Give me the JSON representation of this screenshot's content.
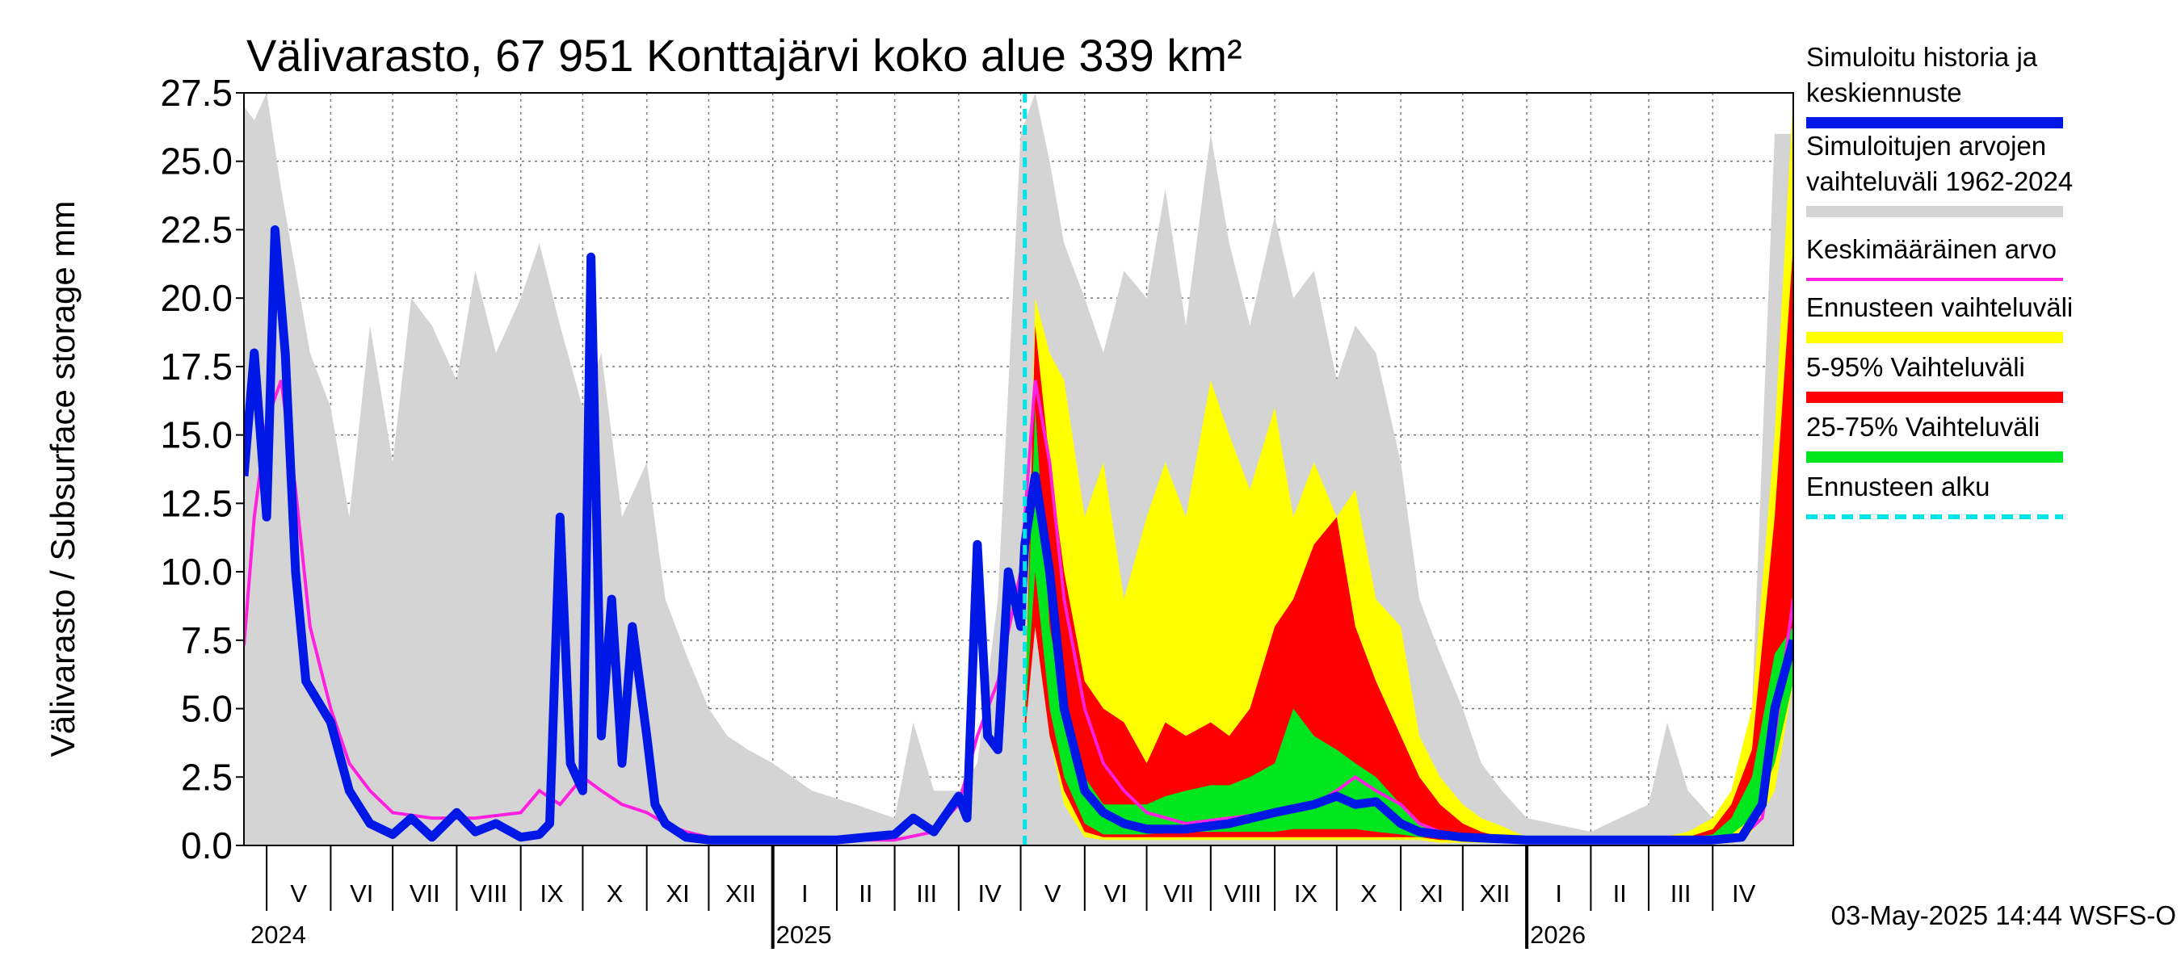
{
  "chart_data": {
    "type": "area",
    "title": "Välivarasto, 67 951 Konttajärvi koko alue 339 km²",
    "ylabel": "Välivarasto / Subsurface storage  mm",
    "ylim": [
      0,
      27.5
    ],
    "yticks": [
      "0.0",
      "2.5",
      "5.0",
      "7.5",
      "10.0",
      "12.5",
      "15.0",
      "17.5",
      "20.0",
      "22.5",
      "25.0",
      "27.5"
    ],
    "x_start": "2024-04-20",
    "x_end": "2026-05-10",
    "forecast_start": "2025-05-03",
    "grid": true,
    "legend_position": "right",
    "months": [
      {
        "label": "V",
        "start": "2024-05-01",
        "end": "2024-06-01"
      },
      {
        "label": "VI",
        "start": "2024-06-01",
        "end": "2024-07-01"
      },
      {
        "label": "VII",
        "start": "2024-07-01",
        "end": "2024-08-01"
      },
      {
        "label": "VIII",
        "start": "2024-08-01",
        "end": "2024-09-01"
      },
      {
        "label": "IX",
        "start": "2024-09-01",
        "end": "2024-10-01"
      },
      {
        "label": "X",
        "start": "2024-10-01",
        "end": "2024-11-01"
      },
      {
        "label": "XI",
        "start": "2024-11-01",
        "end": "2024-12-01"
      },
      {
        "label": "XII",
        "start": "2024-12-01",
        "end": "2025-01-01"
      },
      {
        "label": "I",
        "start": "2025-01-01",
        "end": "2025-02-01"
      },
      {
        "label": "II",
        "start": "2025-02-01",
        "end": "2025-03-01"
      },
      {
        "label": "III",
        "start": "2025-03-01",
        "end": "2025-04-01"
      },
      {
        "label": "IV",
        "start": "2025-04-01",
        "end": "2025-05-01"
      },
      {
        "label": "V",
        "start": "2025-05-01",
        "end": "2025-06-01"
      },
      {
        "label": "VI",
        "start": "2025-06-01",
        "end": "2025-07-01"
      },
      {
        "label": "VII",
        "start": "2025-07-01",
        "end": "2025-08-01"
      },
      {
        "label": "VIII",
        "start": "2025-08-01",
        "end": "2025-09-01"
      },
      {
        "label": "IX",
        "start": "2025-09-01",
        "end": "2025-10-01"
      },
      {
        "label": "X",
        "start": "2025-10-01",
        "end": "2025-11-01"
      },
      {
        "label": "XI",
        "start": "2025-11-01",
        "end": "2025-12-01"
      },
      {
        "label": "XII",
        "start": "2025-12-01",
        "end": "2026-01-01"
      },
      {
        "label": "I",
        "start": "2026-01-01",
        "end": "2026-02-01"
      },
      {
        "label": "II",
        "start": "2026-02-01",
        "end": "2026-03-01"
      },
      {
        "label": "III",
        "start": "2026-03-01",
        "end": "2026-04-01"
      },
      {
        "label": "IV",
        "start": "2026-04-01",
        "end": "2026-05-01"
      }
    ],
    "years": [
      {
        "label": "2024",
        "date": "2024-04-20"
      },
      {
        "label": "2025",
        "date": "2025-01-01"
      },
      {
        "label": "2026",
        "date": "2026-01-01"
      }
    ],
    "legend": [
      {
        "id": "hist",
        "text": [
          "Simuloitu historia ja",
          "keskiennuste"
        ],
        "color": "#0018e6"
      },
      {
        "id": "range",
        "text": [
          "Simuloitujen arvojen",
          "vaihteluväli 1962-2024"
        ],
        "color": "#d4d4d4"
      },
      {
        "id": "mean",
        "text": [
          "Keskimääräinen arvo"
        ],
        "color": "#ff20e0"
      },
      {
        "id": "fc",
        "text": [
          "Ennusteen vaihteluväli"
        ],
        "color": "#ffff00"
      },
      {
        "id": "p5",
        "text": [
          "5-95% Vaihteluväli"
        ],
        "color": "#ff0000"
      },
      {
        "id": "p25",
        "text": [
          "25-75% Vaihteluväli"
        ],
        "color": "#00e61e"
      },
      {
        "id": "start",
        "text": [
          "Ennusteen alku"
        ],
        "color": "#00e6e6"
      }
    ],
    "series": [
      {
        "id": "range",
        "kind": "band",
        "color": "#d4d4d4",
        "x": [
          "2024-04-20",
          "2024-04-25",
          "2024-05-01",
          "2024-05-08",
          "2024-05-15",
          "2024-05-22",
          "2024-06-01",
          "2024-06-10",
          "2024-06-20",
          "2024-07-01",
          "2024-07-10",
          "2024-07-20",
          "2024-08-01",
          "2024-08-10",
          "2024-08-20",
          "2024-09-01",
          "2024-09-10",
          "2024-09-20",
          "2024-10-01",
          "2024-10-10",
          "2024-10-20",
          "2024-11-01",
          "2024-11-10",
          "2024-11-20",
          "2024-12-01",
          "2024-12-10",
          "2024-12-20",
          "2025-01-01",
          "2025-01-20",
          "2025-02-10",
          "2025-03-01",
          "2025-03-10",
          "2025-03-20",
          "2025-04-01",
          "2025-04-10",
          "2025-04-20",
          "2025-05-01",
          "2025-05-08",
          "2025-05-15",
          "2025-05-22",
          "2025-06-01",
          "2025-06-10",
          "2025-06-20",
          "2025-07-01",
          "2025-07-10",
          "2025-07-20",
          "2025-08-01",
          "2025-08-10",
          "2025-08-20",
          "2025-09-01",
          "2025-09-10",
          "2025-09-20",
          "2025-10-01",
          "2025-10-10",
          "2025-10-20",
          "2025-11-01",
          "2025-11-10",
          "2025-11-20",
          "2025-12-01",
          "2025-12-10",
          "2025-12-20",
          "2026-01-01",
          "2026-02-01",
          "2026-03-01",
          "2026-03-10",
          "2026-03-20",
          "2026-04-01",
          "2026-04-10",
          "2026-04-20",
          "2026-05-01",
          "2026-05-10"
        ],
        "low": [
          0,
          0,
          0,
          0,
          0,
          0,
          0,
          0,
          0,
          0,
          0,
          0,
          0,
          0,
          0,
          0,
          0,
          0,
          0,
          0,
          0,
          0,
          0,
          0,
          0,
          0,
          0,
          0,
          0,
          0,
          0,
          0,
          0,
          0,
          0,
          0,
          0,
          0,
          0,
          0,
          0,
          0,
          0,
          0,
          0,
          0,
          0,
          0,
          0,
          0,
          0,
          0,
          0,
          0,
          0,
          0,
          0,
          0,
          0,
          0,
          0,
          0,
          0,
          0,
          0,
          0,
          0,
          0,
          0,
          0,
          0
        ],
        "high": [
          27,
          26.5,
          27.5,
          24,
          21,
          18,
          16,
          12,
          19,
          14,
          20,
          19,
          17,
          21,
          18,
          20,
          22,
          19,
          16,
          18,
          12,
          14,
          9,
          7,
          5,
          4,
          3.5,
          3,
          2,
          1.5,
          1,
          4.5,
          2,
          2,
          3,
          9,
          26,
          27.5,
          25,
          22,
          20,
          18,
          21,
          20,
          24,
          19,
          26,
          22,
          19,
          23,
          20,
          21,
          17,
          19,
          18,
          14,
          9,
          7,
          5,
          3,
          2,
          1,
          0.5,
          1.5,
          4.5,
          2,
          1,
          2,
          5,
          26,
          26
        ]
      },
      {
        "id": "fc",
        "kind": "band",
        "color": "#ffff00",
        "x": [
          "2025-05-03",
          "2025-05-08",
          "2025-05-15",
          "2025-05-22",
          "2025-06-01",
          "2025-06-10",
          "2025-06-20",
          "2025-07-01",
          "2025-07-10",
          "2025-07-20",
          "2025-08-01",
          "2025-08-10",
          "2025-08-20",
          "2025-09-01",
          "2025-09-10",
          "2025-09-20",
          "2025-10-01",
          "2025-10-10",
          "2025-10-20",
          "2025-11-01",
          "2025-11-10",
          "2025-11-20",
          "2025-12-01",
          "2025-12-10",
          "2025-12-20",
          "2026-01-01",
          "2026-02-01",
          "2026-03-01",
          "2026-03-20",
          "2026-04-01",
          "2026-04-10",
          "2026-04-20",
          "2026-05-01",
          "2026-05-10"
        ],
        "low": [
          4,
          8,
          4,
          1.5,
          0.3,
          0.2,
          0.2,
          0.2,
          0.2,
          0.2,
          0.2,
          0.2,
          0.2,
          0.2,
          0.2,
          0.2,
          0.2,
          0.2,
          0.2,
          0.2,
          0.2,
          0.1,
          0.1,
          0.1,
          0.1,
          0.1,
          0.1,
          0.1,
          0.1,
          0.1,
          0.1,
          0.5,
          2,
          6
        ],
        "high": [
          5,
          20,
          18,
          17,
          12,
          14,
          9,
          12,
          14,
          12,
          17,
          15,
          13,
          16,
          12,
          14,
          12,
          13,
          9,
          8,
          4,
          2.5,
          1.5,
          1,
          0.7,
          0.3,
          0.2,
          0.2,
          0.5,
          1,
          2,
          5,
          15,
          27.5
        ]
      },
      {
        "id": "p5",
        "kind": "band",
        "color": "#ff0000",
        "x": [
          "2025-05-03",
          "2025-05-08",
          "2025-05-15",
          "2025-05-22",
          "2025-06-01",
          "2025-06-10",
          "2025-06-20",
          "2025-07-01",
          "2025-07-10",
          "2025-07-20",
          "2025-08-01",
          "2025-08-10",
          "2025-08-20",
          "2025-09-01",
          "2025-09-10",
          "2025-09-20",
          "2025-10-01",
          "2025-10-10",
          "2025-10-20",
          "2025-11-01",
          "2025-11-10",
          "2025-11-20",
          "2025-12-01",
          "2025-12-10",
          "2025-12-20",
          "2026-01-01",
          "2026-02-01",
          "2026-03-01",
          "2026-03-20",
          "2026-04-01",
          "2026-04-10",
          "2026-04-20",
          "2026-05-01",
          "2026-05-10"
        ],
        "low": [
          4,
          8,
          4,
          2,
          0.5,
          0.3,
          0.3,
          0.3,
          0.3,
          0.3,
          0.3,
          0.3,
          0.3,
          0.3,
          0.3,
          0.3,
          0.3,
          0.3,
          0.3,
          0.3,
          0.3,
          0.2,
          0.2,
          0.2,
          0.2,
          0.2,
          0.1,
          0.1,
          0.1,
          0.2,
          0.5,
          1,
          3,
          6
        ],
        "high": [
          4.5,
          19,
          14,
          10,
          6,
          5,
          4.5,
          3,
          4.5,
          4,
          4.5,
          4,
          5,
          8,
          9,
          11,
          12,
          8,
          6,
          4,
          2.5,
          1.5,
          0.8,
          0.5,
          0.3,
          0.2,
          0.2,
          0.2,
          0.3,
          0.6,
          1.5,
          3.5,
          12,
          22
        ]
      },
      {
        "id": "p25",
        "kind": "band",
        "color": "#00e61e",
        "x": [
          "2025-05-03",
          "2025-05-08",
          "2025-05-15",
          "2025-05-22",
          "2025-06-01",
          "2025-06-10",
          "2025-06-20",
          "2025-07-01",
          "2025-07-10",
          "2025-07-20",
          "2025-08-01",
          "2025-08-10",
          "2025-08-20",
          "2025-09-01",
          "2025-09-10",
          "2025-09-20",
          "2025-10-01",
          "2025-10-10",
          "2025-10-20",
          "2025-11-01",
          "2025-11-10",
          "2025-11-20",
          "2025-12-01",
          "2025-12-10",
          "2025-12-20",
          "2026-01-01",
          "2026-02-01",
          "2026-03-01",
          "2026-03-20",
          "2026-04-01",
          "2026-04-10",
          "2026-04-20",
          "2026-05-01",
          "2026-05-10"
        ],
        "low": [
          4.5,
          10,
          5,
          2.5,
          0.8,
          0.4,
          0.4,
          0.4,
          0.5,
          0.5,
          0.5,
          0.5,
          0.5,
          0.5,
          0.6,
          0.6,
          0.6,
          0.6,
          0.5,
          0.4,
          0.3,
          0.3,
          0.2,
          0.2,
          0.2,
          0.2,
          0.2,
          0.2,
          0.2,
          0.2,
          0.4,
          1,
          3,
          6
        ],
        "high": [
          5,
          16,
          8,
          5,
          2.5,
          1.5,
          1.5,
          1.5,
          1.8,
          2,
          2.2,
          2.2,
          2.5,
          3,
          5,
          4,
          3.5,
          3,
          2.5,
          1.5,
          0.8,
          0.5,
          0.4,
          0.3,
          0.3,
          0.2,
          0.2,
          0.2,
          0.3,
          0.4,
          1,
          2.5,
          7,
          8
        ]
      },
      {
        "id": "hist",
        "kind": "line",
        "color": "#0018e6",
        "x": [
          "2024-04-20",
          "2024-04-25",
          "2024-05-01",
          "2024-05-05",
          "2024-05-10",
          "2024-05-15",
          "2024-05-20",
          "2024-06-01",
          "2024-06-10",
          "2024-06-20",
          "2024-07-01",
          "2024-07-10",
          "2024-07-20",
          "2024-08-01",
          "2024-08-10",
          "2024-08-20",
          "2024-09-01",
          "2024-09-10",
          "2024-09-15",
          "2024-09-20",
          "2024-09-25",
          "2024-10-01",
          "2024-10-05",
          "2024-10-10",
          "2024-10-15",
          "2024-10-20",
          "2024-10-25",
          "2024-11-01",
          "2024-11-05",
          "2024-11-10",
          "2024-11-20",
          "2024-12-01",
          "2025-01-01",
          "2025-02-01",
          "2025-03-01",
          "2025-03-10",
          "2025-03-20",
          "2025-04-01",
          "2025-04-05",
          "2025-04-10",
          "2025-04-15",
          "2025-04-20",
          "2025-04-25",
          "2025-05-01",
          "2025-05-03",
          "2025-05-08",
          "2025-05-15",
          "2025-05-22",
          "2025-06-01",
          "2025-06-10",
          "2025-06-20",
          "2025-07-01",
          "2025-07-20",
          "2025-08-10",
          "2025-09-01",
          "2025-09-20",
          "2025-10-01",
          "2025-10-10",
          "2025-10-20",
          "2025-11-01",
          "2025-11-10",
          "2025-11-20",
          "2025-12-01",
          "2026-01-01",
          "2026-02-01",
          "2026-03-01",
          "2026-04-01",
          "2026-04-15",
          "2026-04-25",
          "2026-05-01",
          "2026-05-10"
        ],
        "y": [
          13.5,
          18,
          12,
          22.5,
          18,
          10,
          6,
          4.5,
          2,
          0.8,
          0.4,
          1,
          0.3,
          1.2,
          0.5,
          0.8,
          0.3,
          0.4,
          0.8,
          12,
          3,
          2,
          21.5,
          4,
          9,
          3,
          8,
          4,
          1.5,
          0.8,
          0.3,
          0.2,
          0.2,
          0.2,
          0.4,
          1,
          0.5,
          1.8,
          1,
          11,
          4,
          3.5,
          10,
          8,
          11,
          13.5,
          10,
          5,
          2,
          1.2,
          0.8,
          0.6,
          0.6,
          0.8,
          1.2,
          1.5,
          1.8,
          1.5,
          1.6,
          0.8,
          0.5,
          0.4,
          0.3,
          0.2,
          0.2,
          0.2,
          0.2,
          0.3,
          1.5,
          5,
          7.5
        ]
      },
      {
        "id": "mean",
        "kind": "line",
        "color": "#ff20e0",
        "x": [
          "2024-04-20",
          "2024-04-25",
          "2024-05-01",
          "2024-05-08",
          "2024-05-15",
          "2024-05-22",
          "2024-06-01",
          "2024-06-10",
          "2024-06-20",
          "2024-07-01",
          "2024-07-20",
          "2024-08-10",
          "2024-09-01",
          "2024-09-10",
          "2024-09-20",
          "2024-10-01",
          "2024-10-10",
          "2024-10-20",
          "2024-11-01",
          "2024-11-10",
          "2024-11-20",
          "2024-12-01",
          "2025-01-01",
          "2025-02-01",
          "2025-03-01",
          "2025-03-20",
          "2025-04-01",
          "2025-04-10",
          "2025-04-20",
          "2025-05-01",
          "2025-05-08",
          "2025-05-15",
          "2025-05-22",
          "2025-06-01",
          "2025-06-10",
          "2025-06-20",
          "2025-07-01",
          "2025-07-20",
          "2025-08-10",
          "2025-09-01",
          "2025-09-20",
          "2025-10-01",
          "2025-10-10",
          "2025-10-20",
          "2025-11-01",
          "2025-11-10",
          "2025-11-20",
          "2025-12-01",
          "2026-01-01",
          "2026-02-01",
          "2026-03-01",
          "2026-04-01",
          "2026-04-15",
          "2026-04-25",
          "2026-05-01",
          "2026-05-10"
        ],
        "y": [
          7.3,
          12,
          15.5,
          17,
          13,
          8,
          5,
          3,
          2,
          1.2,
          1,
          1,
          1.2,
          2,
          1.5,
          2.5,
          2,
          1.5,
          1.2,
          0.8,
          0.5,
          0.3,
          0.2,
          0.2,
          0.2,
          0.5,
          1.5,
          4,
          6,
          10,
          17,
          14,
          9,
          5,
          3,
          2,
          1.2,
          0.8,
          1,
          1.2,
          1.5,
          2,
          2.5,
          2,
          1.5,
          0.8,
          0.5,
          0.3,
          0.2,
          0.2,
          0.2,
          0.2,
          0.3,
          1,
          4,
          9
        ]
      }
    ]
  },
  "footer": "03-May-2025 14:44 WSFS-O"
}
